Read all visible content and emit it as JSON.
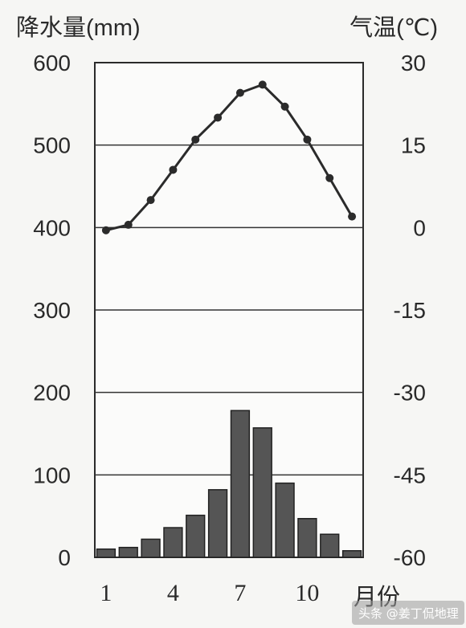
{
  "chart_data": {
    "type": "bar+line",
    "categories": [
      "1",
      "2",
      "3",
      "4",
      "5",
      "6",
      "7",
      "8",
      "9",
      "10",
      "11",
      "12"
    ],
    "x_tick_labels": [
      "1",
      "4",
      "7",
      "10"
    ],
    "xlabel": "月份",
    "series": [
      {
        "name": "降水量",
        "type": "bar",
        "axis": "left",
        "values": [
          10,
          12,
          22,
          36,
          51,
          82,
          178,
          157,
          90,
          47,
          28,
          8
        ]
      },
      {
        "name": "气温",
        "type": "line",
        "axis": "right",
        "values": [
          -0.5,
          0.5,
          5,
          10.5,
          16,
          20,
          24.5,
          26,
          22,
          16,
          9,
          2
        ]
      }
    ],
    "left_axis": {
      "label": "降水量(mm)",
      "ticks": [
        600,
        500,
        400,
        300,
        200,
        100,
        0
      ],
      "ylim": [
        0,
        600
      ]
    },
    "right_axis": {
      "label": "气温(℃)",
      "ticks": [
        30,
        15,
        0,
        -15,
        -30,
        -45,
        -60
      ],
      "ylim": [
        -60,
        30
      ]
    },
    "grid": true,
    "colors": {
      "bar_fill": "#555555",
      "bar_stroke": "#222222",
      "line": "#2b2b2b",
      "grid": "#333333"
    }
  },
  "watermark": "头条 @姜丁侃地理"
}
